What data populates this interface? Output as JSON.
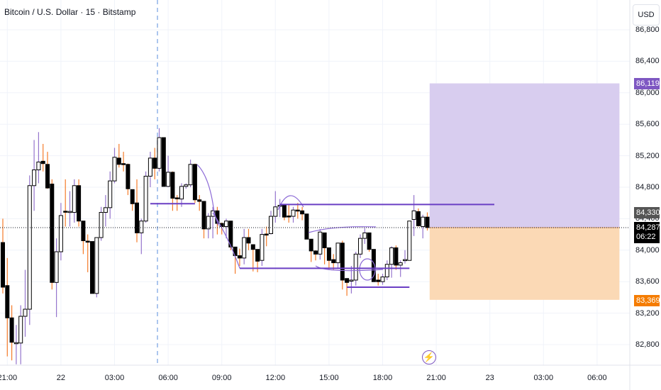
{
  "header": {
    "title": "Bitcoin / U.S. Dollar · 15 · Bitstamp",
    "currency_button": "USD"
  },
  "colors": {
    "up_body": "#ffffff",
    "down_body": "#000000",
    "up_wick": "#9575cd",
    "down_wick": "#f57c2a",
    "target_zone": "#d8cdef",
    "stop_zone": "#fbd9b5",
    "target_tag": "#7e57c2",
    "stop_tag": "#f57c00",
    "drawing": "#6a3fc4"
  },
  "price_tags": {
    "target": "86,119",
    "prev": "84,330",
    "last": "84,287",
    "countdown": "06:22",
    "stop": "83,369"
  },
  "lightning_icon": "⚡",
  "chart_data": {
    "type": "candlestick",
    "title": "Bitcoin / U.S. Dollar · 15 · Bitstamp",
    "ylim": [
      82450,
      87100
    ],
    "yticks": [
      86800,
      86400,
      86000,
      85600,
      85200,
      84800,
      84400,
      84000,
      83600,
      83200,
      82800
    ],
    "ytick_labels": [
      "86,800",
      "86,400",
      "86,000",
      "85,600",
      "85,200",
      "84,800",
      "84,400",
      "84,000",
      "83,600",
      "83,200",
      "82,800"
    ],
    "xtick_bars": [
      1,
      13,
      25,
      37,
      49,
      61,
      73,
      85,
      97,
      109,
      121,
      133
    ],
    "xtick_labels": [
      "21:00",
      "22",
      "03:00",
      "06:00",
      "09:00",
      "12:00",
      "15:00",
      "18:00",
      "21:00",
      "23",
      "03:00",
      "06:00"
    ],
    "position": {
      "entry": 84287,
      "target": 86119,
      "stop": 83369,
      "start_bar": 96,
      "end_bar": 138
    },
    "horizontal_lines": [
      {
        "price": 84580,
        "from_bar": 62,
        "to_bar": 110
      },
      {
        "price": 83770,
        "from_bar": 53,
        "to_bar": 91
      },
      {
        "price": 83530,
        "from_bar": 77,
        "to_bar": 91
      },
      {
        "price": 84590,
        "from_bar": 33,
        "to_bar": 43
      }
    ],
    "ohlc": [
      [
        84097,
        84400,
        83450,
        83530
      ],
      [
        83550,
        83900,
        82650,
        83140
      ],
      [
        83140,
        83300,
        82600,
        82830
      ],
      [
        82820,
        83050,
        82550,
        82825
      ],
      [
        82820,
        83300,
        82550,
        83160
      ],
      [
        83160,
        83750,
        82900,
        83250
      ],
      [
        83250,
        84950,
        83050,
        84820
      ],
      [
        84820,
        85400,
        84500,
        85020
      ],
      [
        85020,
        85500,
        84850,
        85120
      ],
      [
        85130,
        85350,
        85000,
        85100
      ],
      [
        85090,
        85250,
        84780,
        84790
      ],
      [
        84840,
        84900,
        83500,
        83590
      ],
      [
        83590,
        84150,
        83150,
        83980
      ],
      [
        83980,
        84600,
        83870,
        84440
      ],
      [
        84495,
        84900,
        84300,
        84490
      ],
      [
        84490,
        84750,
        84300,
        84492
      ],
      [
        84480,
        84900,
        84350,
        84820
      ],
      [
        84820,
        84900,
        84300,
        84370
      ],
      [
        84370,
        84370,
        83950,
        84120
      ],
      [
        84115,
        84200,
        83720,
        84110
      ],
      [
        84110,
        84110,
        83450,
        83450
      ],
      [
        83450,
        84160,
        83400,
        84160
      ],
      [
        84160,
        84550,
        84120,
        84480
      ],
      [
        84480,
        84700,
        84300,
        84540
      ],
      [
        84540,
        85000,
        84400,
        84880
      ],
      [
        84880,
        85300,
        84850,
        85180
      ],
      [
        85170,
        85350,
        85050,
        85090
      ],
      [
        85100,
        85250,
        85000,
        85090
      ],
      [
        85090,
        85100,
        84700,
        84780
      ],
      [
        84770,
        84770,
        84500,
        84590
      ],
      [
        84600,
        84900,
        84100,
        84220
      ],
      [
        84220,
        84400,
        83950,
        84370
      ],
      [
        84370,
        85000,
        84350,
        84940
      ],
      [
        84940,
        85250,
        84800,
        85170
      ],
      [
        85170,
        85300,
        84900,
        85040
      ],
      [
        85040,
        85550,
        85000,
        85430
      ],
      [
        85430,
        85430,
        84810,
        84810
      ],
      [
        84810,
        85200,
        84800,
        84990
      ],
      [
        84990,
        85000,
        84500,
        84660
      ],
      [
        84665,
        84700,
        84500,
        84660
      ],
      [
        84650,
        84850,
        84550,
        84810
      ],
      [
        84810,
        84850,
        84780,
        84830
      ],
      [
        84830,
        85150,
        84800,
        85090
      ],
      [
        85090,
        85100,
        84600,
        84640
      ],
      [
        84640,
        84700,
        84500,
        84620
      ],
      [
        84620,
        84620,
        84150,
        84270
      ],
      [
        84270,
        84470,
        84150,
        84430
      ],
      [
        84430,
        84550,
        84150,
        84500
      ],
      [
        84500,
        84550,
        84200,
        84340
      ],
      [
        84340,
        84350,
        84200,
        84300
      ],
      [
        84300,
        84400,
        84150,
        84370
      ],
      [
        84370,
        84370,
        84000,
        84040
      ],
      [
        84040,
        84040,
        83700,
        83930
      ],
      [
        83930,
        84020,
        83800,
        83900
      ],
      [
        83900,
        84270,
        83820,
        84160
      ],
      [
        84160,
        84270,
        84000,
        84090
      ],
      [
        84070,
        84070,
        83730,
        84010
      ],
      [
        84010,
        84010,
        83720,
        83860
      ],
      [
        83870,
        84270,
        83800,
        84200
      ],
      [
        84205,
        84300,
        84050,
        84200
      ],
      [
        84210,
        84500,
        84200,
        84430
      ],
      [
        84430,
        84750,
        84350,
        84550
      ],
      [
        84565,
        84650,
        84420,
        84570
      ],
      [
        84570,
        84570,
        84380,
        84420
      ],
      [
        84435,
        84580,
        84350,
        84430
      ],
      [
        84430,
        84550,
        84350,
        84510
      ],
      [
        84510,
        84600,
        84400,
        84500
      ],
      [
        84500,
        84550,
        84380,
        84460
      ],
      [
        84460,
        84460,
        84140,
        84140
      ],
      [
        84140,
        84140,
        83850,
        83990
      ],
      [
        83990,
        84000,
        83870,
        83950
      ],
      [
        83950,
        84270,
        83880,
        84230
      ],
      [
        84220,
        84220,
        83820,
        84030
      ],
      [
        84030,
        84030,
        83750,
        83870
      ],
      [
        83880,
        83950,
        83750,
        83840
      ],
      [
        83840,
        84090,
        83760,
        84090
      ],
      [
        84090,
        84120,
        83500,
        83620
      ],
      [
        83640,
        83640,
        83420,
        83590
      ],
      [
        83615,
        83800,
        83450,
        83620
      ],
      [
        83620,
        83980,
        83550,
        83950
      ],
      [
        83950,
        84200,
        83900,
        84150
      ],
      [
        84150,
        84280,
        84080,
        84220
      ],
      [
        84220,
        84220,
        83980,
        84010
      ],
      [
        84010,
        84010,
        83600,
        83600
      ],
      [
        83620,
        83700,
        83550,
        83600
      ],
      [
        83600,
        83700,
        83560,
        83660
      ],
      [
        83660,
        83870,
        83620,
        83820
      ],
      [
        83820,
        84050,
        83650,
        84030
      ],
      [
        84030,
        84060,
        83750,
        83810
      ],
      [
        83810,
        83870,
        83660,
        83840
      ],
      [
        83870,
        84000,
        83830,
        83880
      ],
      [
        83870,
        84370,
        83870,
        84370
      ],
      [
        84390,
        84700,
        84180,
        84500
      ],
      [
        84490,
        84530,
        84300,
        84310
      ],
      [
        84300,
        84450,
        84150,
        84420
      ],
      [
        84420,
        84480,
        84250,
        84287
      ]
    ]
  }
}
